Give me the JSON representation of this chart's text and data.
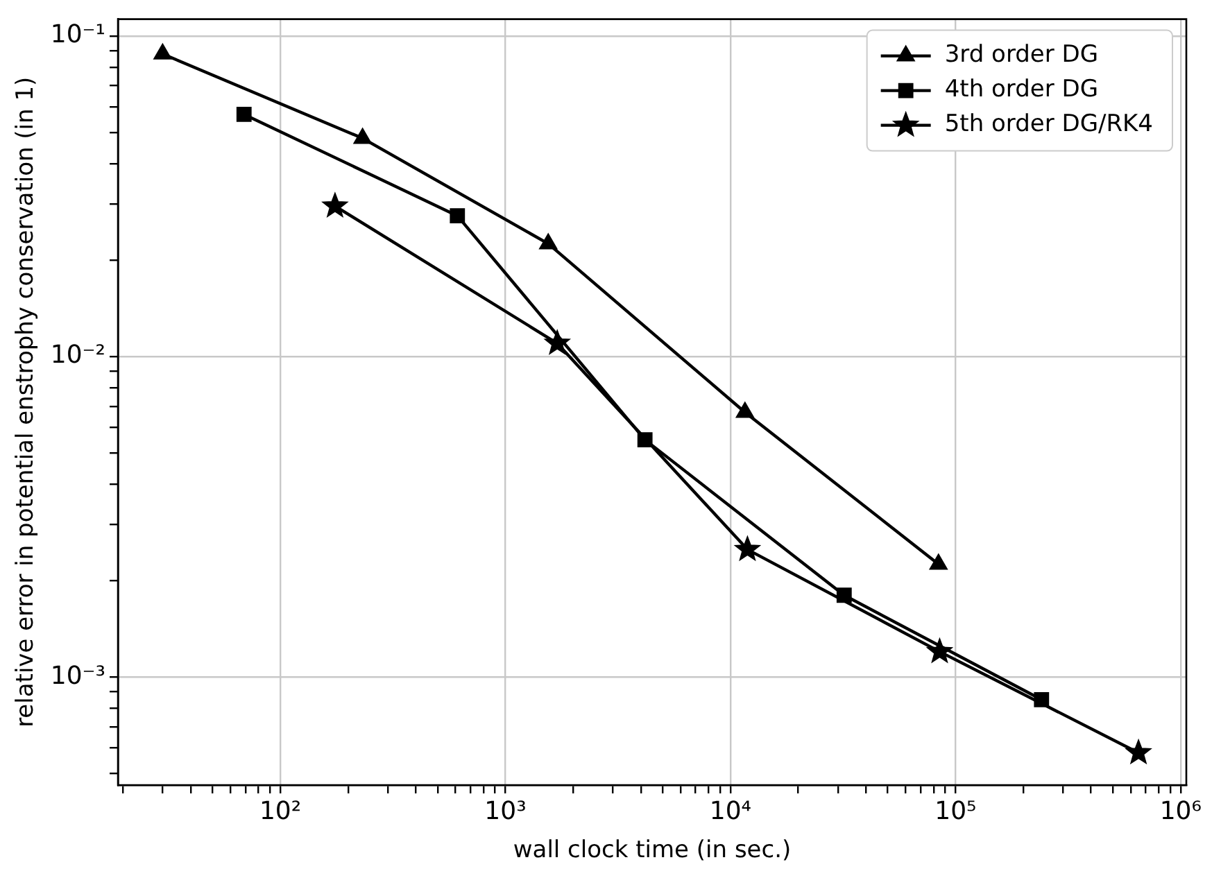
{
  "chart_data": {
    "type": "line",
    "xlabel": "wall clock time (in sec.)",
    "ylabel": "relative error in potential enstrophy conservation (in 1)",
    "log": "xy",
    "grid": true,
    "legend": "top right",
    "line_style": "solid",
    "xlim": [
      19,
      1060000
    ],
    "ylim": [
      0.00046,
      0.113
    ],
    "xticks": [
      {
        "value": 20,
        "label": null
      },
      {
        "value": 30,
        "label": null
      },
      {
        "value": 40,
        "label": null
      },
      {
        "value": 50,
        "label": null
      },
      {
        "value": 60,
        "label": null
      },
      {
        "value": 70,
        "label": null
      },
      {
        "value": 80,
        "label": null
      },
      {
        "value": 90,
        "label": null
      },
      {
        "value": 100,
        "label": "10²"
      },
      {
        "value": 200,
        "label": null
      },
      {
        "value": 300,
        "label": null
      },
      {
        "value": 400,
        "label": null
      },
      {
        "value": 500,
        "label": null
      },
      {
        "value": 600,
        "label": null
      },
      {
        "value": 700,
        "label": null
      },
      {
        "value": 800,
        "label": null
      },
      {
        "value": 900,
        "label": null
      },
      {
        "value": 1000,
        "label": "10³"
      },
      {
        "value": 2000,
        "label": null
      },
      {
        "value": 3000,
        "label": null
      },
      {
        "value": 4000,
        "label": null
      },
      {
        "value": 5000,
        "label": null
      },
      {
        "value": 6000,
        "label": null
      },
      {
        "value": 7000,
        "label": null
      },
      {
        "value": 8000,
        "label": null
      },
      {
        "value": 9000,
        "label": null
      },
      {
        "value": 10000,
        "label": "10⁴"
      },
      {
        "value": 20000,
        "label": null
      },
      {
        "value": 30000,
        "label": null
      },
      {
        "value": 40000,
        "label": null
      },
      {
        "value": 50000,
        "label": null
      },
      {
        "value": 60000,
        "label": null
      },
      {
        "value": 70000,
        "label": null
      },
      {
        "value": 80000,
        "label": null
      },
      {
        "value": 90000,
        "label": null
      },
      {
        "value": 100000,
        "label": "10⁵"
      },
      {
        "value": 200000,
        "label": null
      },
      {
        "value": 300000,
        "label": null
      },
      {
        "value": 400000,
        "label": null
      },
      {
        "value": 500000,
        "label": null
      },
      {
        "value": 600000,
        "label": null
      },
      {
        "value": 700000,
        "label": null
      },
      {
        "value": 800000,
        "label": null
      },
      {
        "value": 900000,
        "label": null
      },
      {
        "value": 1000000,
        "label": "10⁶"
      }
    ],
    "yticks": [
      {
        "value": 0.0005,
        "label": null
      },
      {
        "value": 0.0006,
        "label": null
      },
      {
        "value": 0.0007,
        "label": null
      },
      {
        "value": 0.0008,
        "label": null
      },
      {
        "value": 0.0009,
        "label": null
      },
      {
        "value": 0.001,
        "label": "10⁻³"
      },
      {
        "value": 0.002,
        "label": null
      },
      {
        "value": 0.003,
        "label": null
      },
      {
        "value": 0.004,
        "label": null
      },
      {
        "value": 0.005,
        "label": null
      },
      {
        "value": 0.006,
        "label": null
      },
      {
        "value": 0.007,
        "label": null
      },
      {
        "value": 0.008,
        "label": null
      },
      {
        "value": 0.009,
        "label": null
      },
      {
        "value": 0.01,
        "label": "10⁻²"
      },
      {
        "value": 0.02,
        "label": null
      },
      {
        "value": 0.03,
        "label": null
      },
      {
        "value": 0.04,
        "label": null
      },
      {
        "value": 0.05,
        "label": null
      },
      {
        "value": 0.06,
        "label": null
      },
      {
        "value": 0.07,
        "label": null
      },
      {
        "value": 0.08,
        "label": null
      },
      {
        "value": 0.09,
        "label": null
      },
      {
        "value": 0.1,
        "label": "10⁻¹"
      }
    ],
    "series": [
      {
        "name": "3rd order DG",
        "color": "#000000",
        "marker": "triangle",
        "x": [
          30,
          232,
          1550,
          11600,
          84000
        ],
        "values": [
          0.088,
          0.048,
          0.0225,
          0.0067,
          0.00225
        ]
      },
      {
        "name": "4th order DG",
        "color": "#000000",
        "marker": "square",
        "x": [
          69,
          612,
          4170,
          32000,
          241000
        ],
        "values": [
          0.057,
          0.0275,
          0.0055,
          0.0018,
          0.00085
        ]
      },
      {
        "name": "5th order DG/RK4",
        "color": "#000000",
        "marker": "star",
        "x": [
          175,
          1700,
          11900,
          85000,
          650000
        ],
        "values": [
          0.0295,
          0.011,
          0.0025,
          0.0012,
          0.00058
        ]
      }
    ]
  }
}
